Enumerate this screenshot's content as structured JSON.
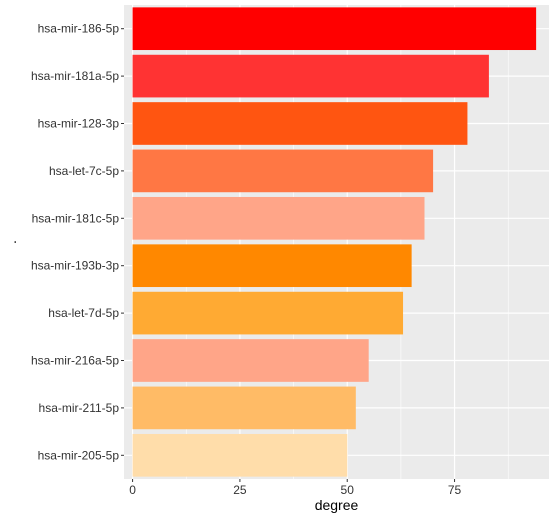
{
  "chart_data": {
    "type": "bar",
    "orientation": "horizontal",
    "categories": [
      "hsa-mir-186-5p",
      "hsa-mir-181a-5p",
      "hsa-mir-128-3p",
      "hsa-let-7c-5p",
      "hsa-mir-181c-5p",
      "hsa-mir-193b-3p",
      "hsa-let-7d-5p",
      "hsa-mir-216a-5p",
      "hsa-mir-211-5p",
      "hsa-mir-205-5p"
    ],
    "values": [
      94,
      83,
      78,
      70,
      68,
      65,
      63,
      55,
      52,
      50
    ],
    "colors": [
      "#FF0000",
      "#FF3333",
      "#FF5511",
      "#FF7744",
      "#FFA588",
      "#FF8800",
      "#FFAA33",
      "#FFA588",
      "#FFBB66",
      "#FFDDAA"
    ],
    "xlabel": "degree",
    "ylabel": ".",
    "xlim": [
      -2,
      97
    ],
    "xticks": [
      0,
      25,
      50,
      75
    ],
    "grid": true,
    "panel_background": "#EBEBEB",
    "grid_color": "#FFFFFF"
  }
}
